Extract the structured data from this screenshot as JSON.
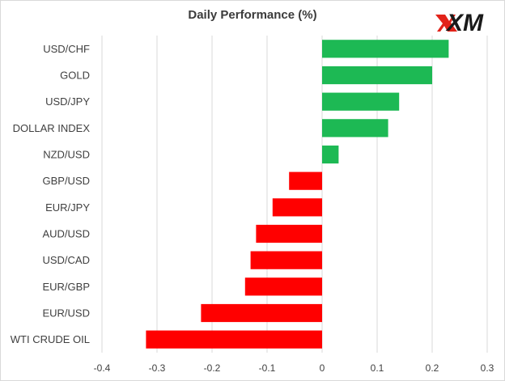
{
  "title": "Daily Performance (%)",
  "brand": {
    "logo_text": "XM",
    "logo_color": "#e2231a"
  },
  "chart_data": {
    "type": "bar",
    "orientation": "horizontal",
    "title": "Daily Performance (%)",
    "categories": [
      "USD/CHF",
      "GOLD",
      "USD/JPY",
      "DOLLAR INDEX",
      "NZD/USD",
      "GBP/USD",
      "EUR/JPY",
      "AUD/USD",
      "USD/CAD",
      "EUR/GBP",
      "EUR/USD",
      "WTI CRUDE OIL"
    ],
    "values": [
      0.23,
      0.2,
      0.14,
      0.12,
      0.03,
      -0.06,
      -0.09,
      -0.12,
      -0.13,
      -0.14,
      -0.22,
      -0.32
    ],
    "xlim": [
      -0.4,
      0.3
    ],
    "xticks": [
      -0.4,
      -0.3,
      -0.2,
      -0.1,
      0,
      0.1,
      0.2,
      0.3
    ],
    "xtick_labels": [
      "-0.4",
      "-0.3",
      "-0.2",
      "-0.1",
      "0",
      "0.1",
      "0.2",
      "0.3"
    ],
    "grid": true,
    "positive_color": "#1db954",
    "negative_color": "#ff0000",
    "grid_color": "#d9d9d9"
  }
}
